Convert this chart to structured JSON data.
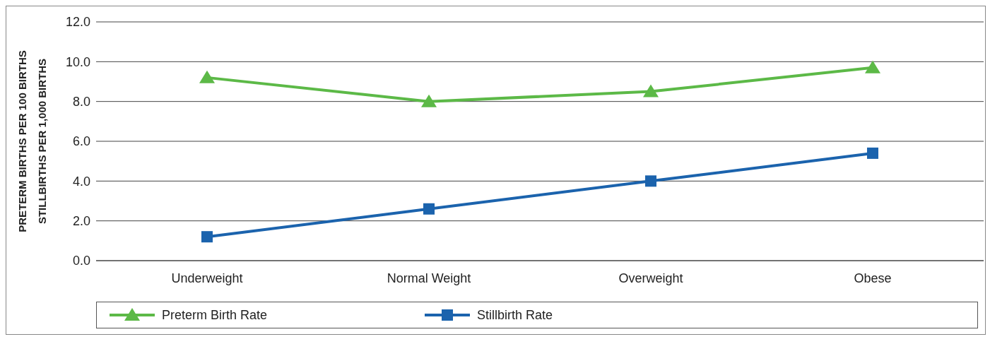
{
  "chart_data": {
    "type": "line",
    "ylabel": "PRETERM BIRTHS PER 100 BIRTHS\nSTILLBIRTHS PER 1,000 BIRTHS",
    "categories": [
      "Underweight",
      "Normal Weight",
      "Overweight",
      "Obese"
    ],
    "series": [
      {
        "name": "Preterm Birth Rate",
        "color": "#5cb947",
        "marker": "triangle",
        "values": [
          9.2,
          8.0,
          8.5,
          9.7
        ]
      },
      {
        "name": "Stillbirth Rate",
        "color": "#1b63ad",
        "marker": "square",
        "values": [
          1.2,
          2.6,
          4.0,
          5.4
        ]
      }
    ],
    "ylim": [
      0,
      12
    ],
    "yticks": [
      {
        "value": 0,
        "label": "0.0"
      },
      {
        "value": 2,
        "label": "2.0"
      },
      {
        "value": 4,
        "label": "4.0"
      },
      {
        "value": 6,
        "label": "6.0"
      },
      {
        "value": 8,
        "label": "8.0"
      },
      {
        "value": 10,
        "label": "10.0"
      },
      {
        "value": 12,
        "label": "12.0"
      }
    ],
    "grid": "y",
    "legend": "bottom",
    "line_style": "solid"
  }
}
